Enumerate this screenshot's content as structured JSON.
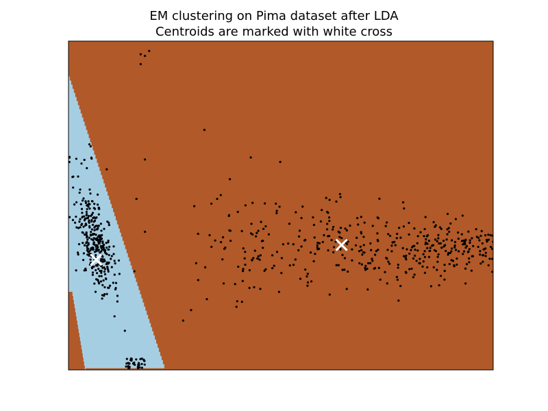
{
  "figure": {
    "title": "EM clustering on Pima dataset after LDA",
    "subtitle": "Centroids are marked with white cross"
  },
  "chart_data": {
    "type": "scatter",
    "title": "EM clustering on Pima dataset after LDA",
    "subtitle": "Centroids are marked with white cross",
    "xlabel": "",
    "ylabel": "",
    "xticks": [],
    "yticks": [],
    "xlim": [
      0,
      1
    ],
    "ylim": [
      0,
      1
    ],
    "grid": false,
    "legend": "none",
    "decision_regions": [
      {
        "cluster": 0,
        "color": "#a6cee3",
        "description": "light blue region on the left"
      },
      {
        "cluster": 1,
        "color": "#b15928",
        "description": "brown region covering the rest"
      }
    ],
    "boundary_polyline_x_by_y": [
      [
        1.0,
        0.0
      ],
      [
        0.905,
        0.04
      ],
      [
        0.0,
        0.23
      ]
    ],
    "boundary_lower_left": [
      [
        0.34,
        0.0
      ],
      [
        0.305,
        0.04
      ],
      [
        0.0,
        0.025
      ]
    ],
    "centroids": [
      {
        "x": 0.065,
        "y": 0.335,
        "marker": "x",
        "color": "#ffffff"
      },
      {
        "x": 0.643,
        "y": 0.38,
        "marker": "x",
        "color": "#ffffff"
      }
    ],
    "points_color": "#000000",
    "points_note": "approximately 760 projected samples; left cluster dense near x≈0.06, right cluster spread x≈0.3–1.0"
  },
  "icons": {
    "centroid_marker": "white-cross-icon"
  }
}
